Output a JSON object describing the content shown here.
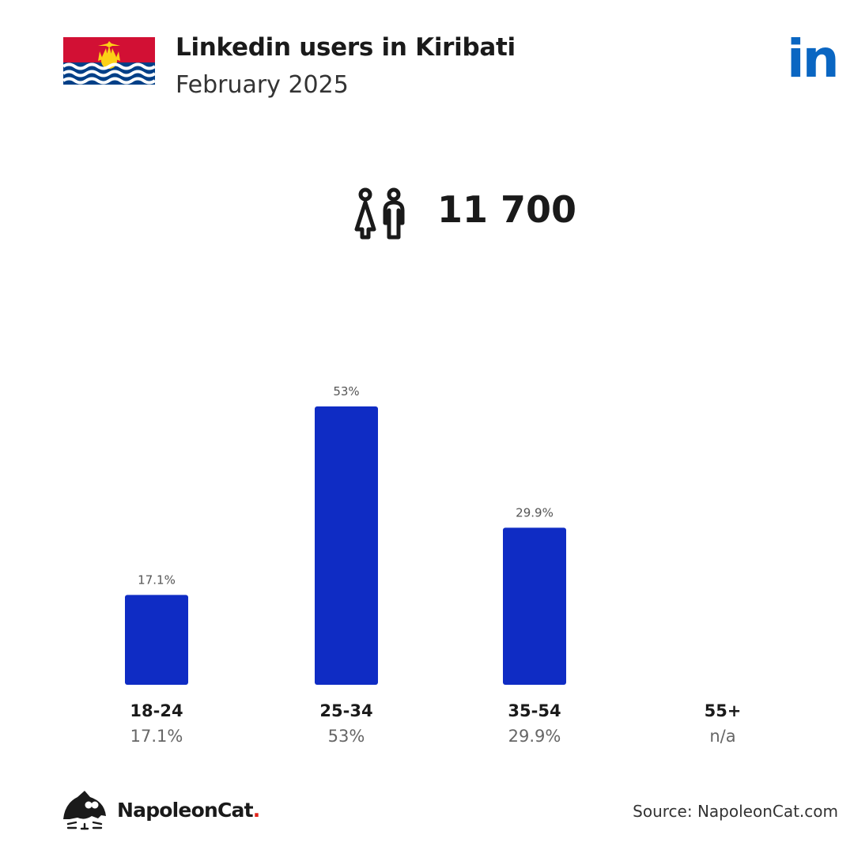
{
  "header": {
    "title": "Linkedin users in Kiribati",
    "subtitle": "February 2025",
    "logo_text": "in"
  },
  "summary": {
    "total_users": "11 700",
    "icon": "people-icon"
  },
  "chart_data": {
    "type": "bar",
    "categories": [
      "18-24",
      "25-34",
      "35-54",
      "55+"
    ],
    "values": [
      17.1,
      53,
      29.9,
      null
    ],
    "value_labels": [
      "17.1%",
      "53%",
      "29.9%",
      "n/a"
    ],
    "ylim": [
      0,
      53
    ],
    "grid": false,
    "bar_color": "#0f2cc4"
  },
  "footer": {
    "brand_name": "NapoleonCat",
    "brand_dot": ".",
    "source": "Source: NapoleonCat.com"
  },
  "colors": {
    "linkedin_blue": "#0a66c2",
    "bar": "#0f2cc4",
    "flag_red": "#d21034",
    "flag_blue": "#003f87",
    "flag_yellow": "#fcd116",
    "brand_red": "#e2231a"
  }
}
